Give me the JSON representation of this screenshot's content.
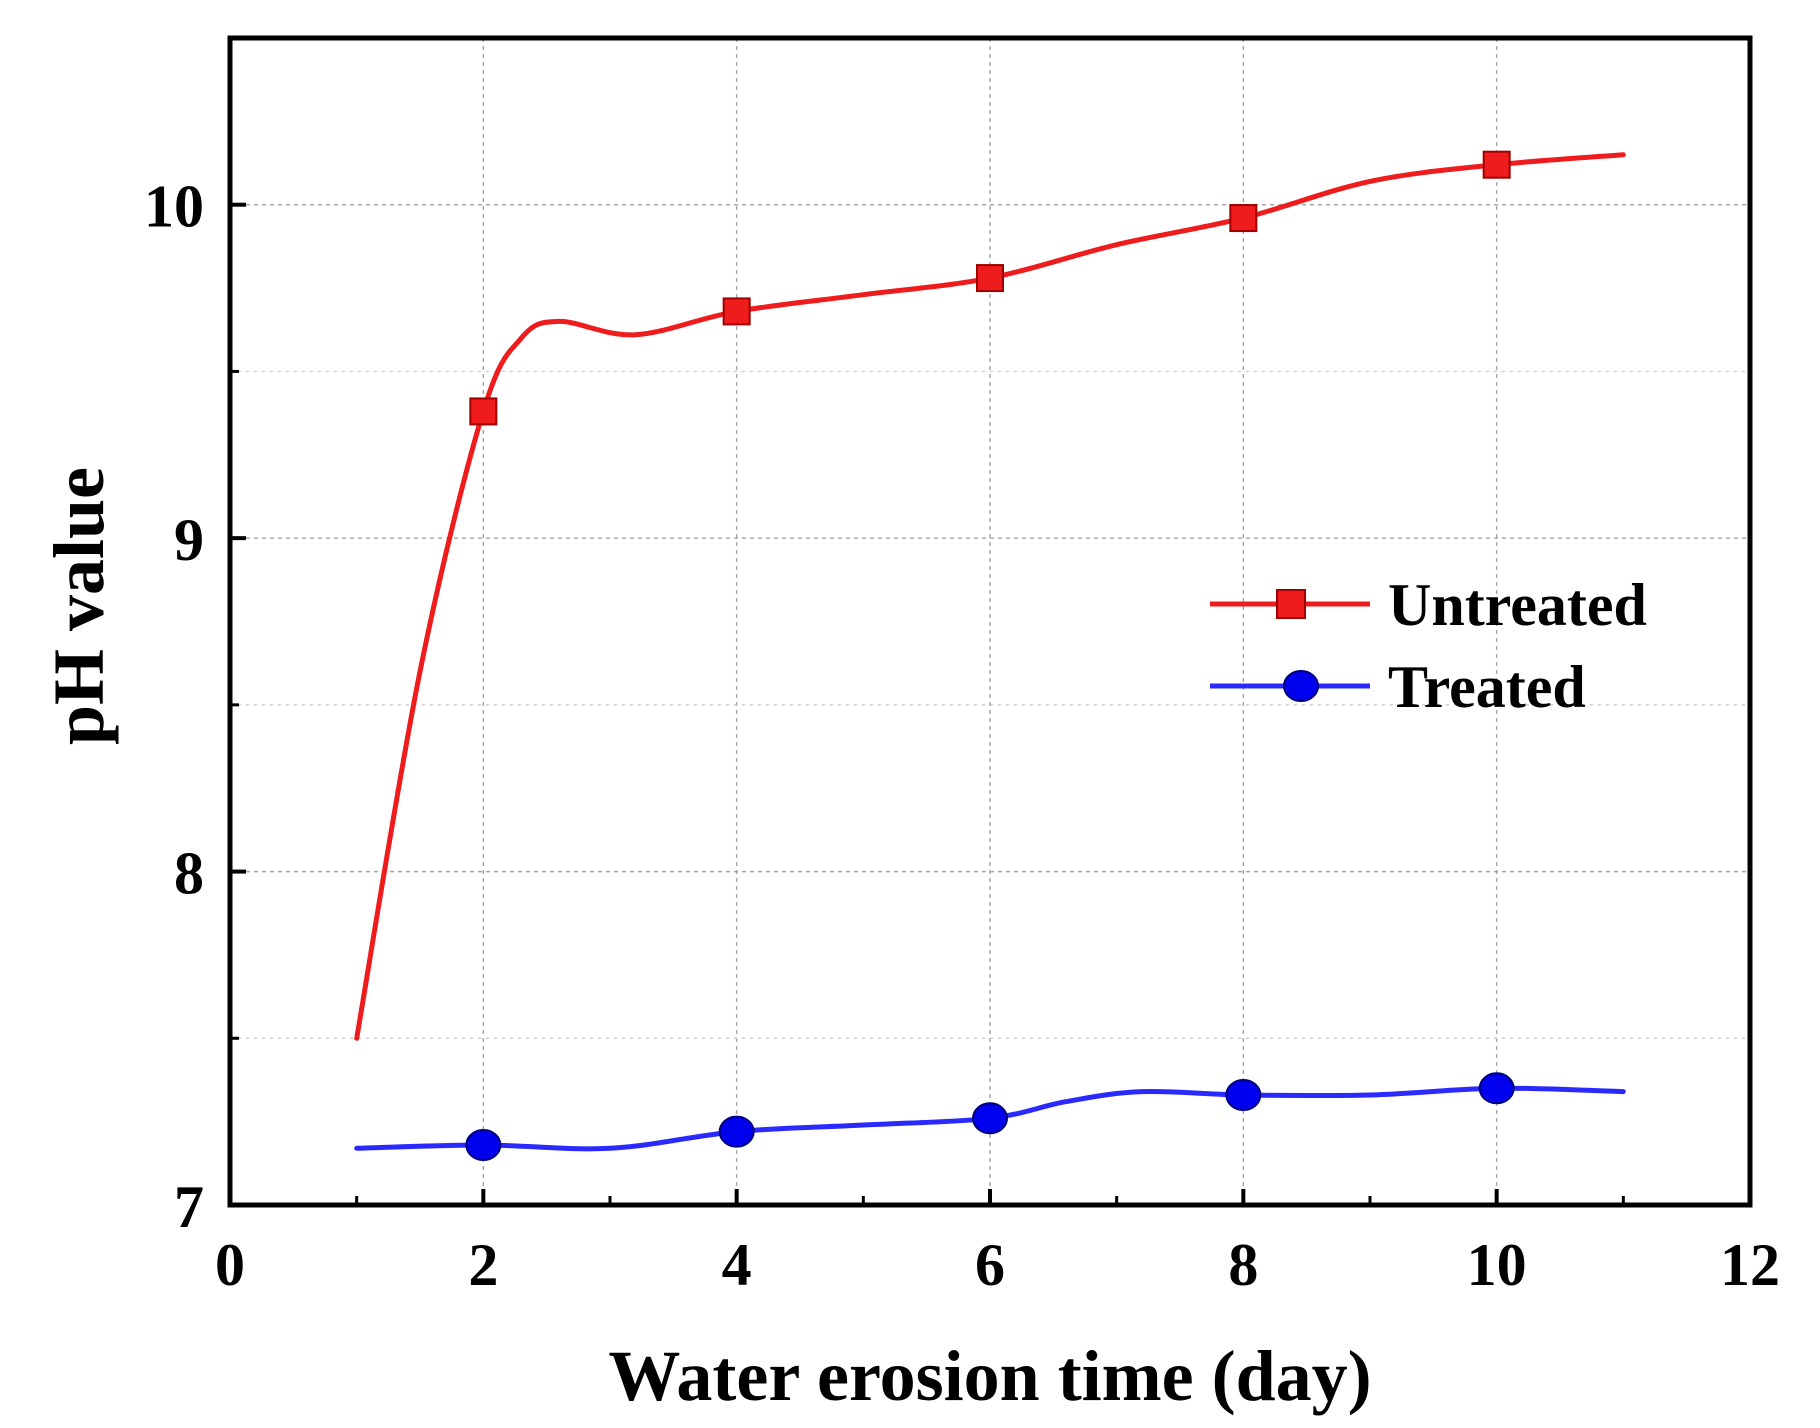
{
  "chart_data": {
    "type": "line",
    "title": "",
    "xlabel": "Water erosion time (day)",
    "ylabel": "pH value",
    "xlim": [
      0,
      12
    ],
    "ylim": [
      7,
      10.5
    ],
    "x_ticks": [
      0,
      2,
      4,
      6,
      8,
      10,
      12
    ],
    "x_tick_labels": [
      "0",
      "2",
      "4",
      "6",
      "8",
      "10",
      "12"
    ],
    "x_minor_ticks": [
      1,
      3,
      5,
      7,
      9,
      11
    ],
    "y_ticks": [
      7,
      8,
      9,
      10
    ],
    "y_tick_labels": [
      "7",
      "8",
      "9",
      "10"
    ],
    "y_minor_ticks": [
      7.5,
      8.5,
      9.5
    ],
    "grid": true,
    "legend_position": "center-right",
    "series": [
      {
        "name": "Untreated",
        "color": "#ee1c1c",
        "marker": "square",
        "x": [
          2,
          4,
          6,
          8,
          10
        ],
        "y": [
          9.38,
          9.68,
          9.78,
          9.96,
          10.12
        ],
        "curve_x": [
          1,
          1.5,
          2,
          2.3,
          2.6,
          3.2,
          4,
          5,
          6,
          7,
          8,
          9,
          10,
          11
        ],
        "curve_y": [
          7.5,
          8.6,
          9.38,
          9.6,
          9.65,
          9.61,
          9.68,
          9.73,
          9.78,
          9.88,
          9.96,
          10.07,
          10.12,
          10.15
        ]
      },
      {
        "name": "Treated",
        "color": "#2a2aff",
        "marker": "circle",
        "x": [
          2,
          4,
          6,
          8,
          10
        ],
        "y": [
          7.18,
          7.22,
          7.26,
          7.33,
          7.35
        ],
        "curve_x": [
          1,
          2,
          3,
          4,
          5,
          6,
          6.6,
          7.2,
          8,
          9,
          10,
          11
        ],
        "curve_y": [
          7.17,
          7.18,
          7.17,
          7.22,
          7.24,
          7.26,
          7.31,
          7.34,
          7.33,
          7.33,
          7.35,
          7.34
        ]
      }
    ]
  }
}
